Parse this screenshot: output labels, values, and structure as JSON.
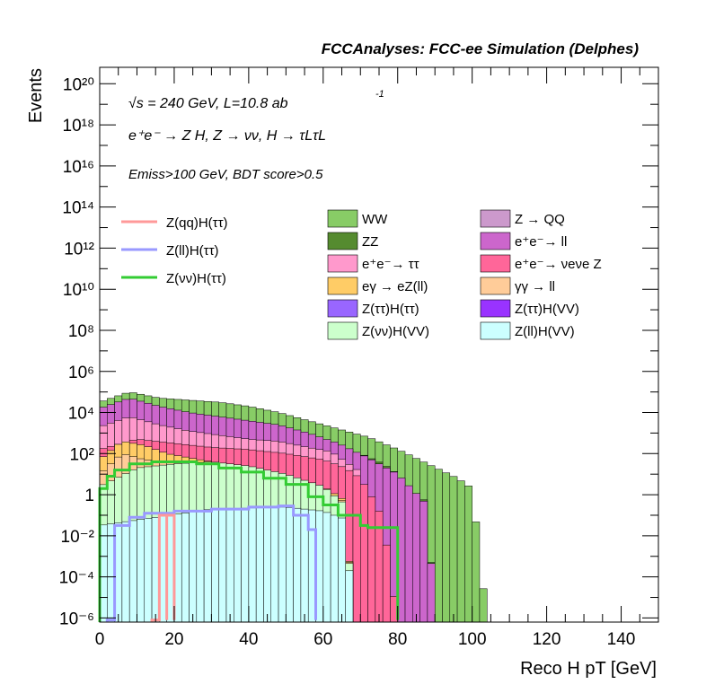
{
  "header": "FCCAnalyses: FCC-ee Simulation (Delphes)",
  "annotations": {
    "energy": "√s = 240 GeV, L=10.8 ab",
    "energy_exp": "-1",
    "process": "e⁺e⁻ → Z H, Z → νν, H → τLτL",
    "cut": "Emiss>100 GeV, BDT score>0.5"
  },
  "chart_data": {
    "type": "area",
    "xlabel": "Reco H pT [GeV]",
    "ylabel": "Events",
    "xlim": [
      0,
      150
    ],
    "ylim_log10": [
      -6.2,
      20.8
    ],
    "yscale": "log",
    "x_ticks": [
      "0",
      "20",
      "40",
      "60",
      "80",
      "100",
      "120",
      "140"
    ],
    "y_ticks": [
      "10⁻⁶",
      "10⁻⁴",
      "10⁻²",
      "1",
      "10²",
      "10⁴",
      "10⁶",
      "10⁸",
      "10¹⁰",
      "10¹²",
      "10¹⁴",
      "10¹⁶",
      "10¹⁸",
      "10²⁰"
    ],
    "legend_signals": [
      {
        "label": "Z(qq)H(ττ)",
        "color": "#ff9999"
      },
      {
        "label": "Z(ll)H(ττ)",
        "color": "#9999ff"
      },
      {
        "label": "Z(νν)H(ττ)",
        "color": "#33cc33"
      }
    ],
    "legend_backgrounds": [
      {
        "label": "WW",
        "color": "#88cc66"
      },
      {
        "label": "Z → QQ",
        "color": "#cc99cc"
      },
      {
        "label": "ZZ",
        "color": "#558b2f"
      },
      {
        "label": "e⁺e⁻→ ll",
        "color": "#cc66cc"
      },
      {
        "label": "e⁺e⁻→ ττ",
        "color": "#ff99cc"
      },
      {
        "label": "e⁺e⁻→ νeνe Z",
        "color": "#ff6699"
      },
      {
        "label": "eγ → eZ(ll)",
        "color": "#ffcc66"
      },
      {
        "label": "γγ → ll",
        "color": "#ffcc99"
      },
      {
        "label": "Z(ττ)H(ττ)",
        "color": "#9966ff"
      },
      {
        "label": "Z(ττ)H(VV)",
        "color": "#9933ff"
      },
      {
        "label": "Z(νν)H(VV)",
        "color": "#ccffcc"
      },
      {
        "label": "Z(ll)H(VV)",
        "color": "#ccffff"
      }
    ],
    "stack_bin_width": 2,
    "stack_totals_log10": [
      {
        "name": "Z(ll)H(VV)",
        "color": "#ccffff",
        "points": [
          [
            0,
            -1.5
          ],
          [
            30,
            -0.7
          ],
          [
            50,
            -0.6
          ],
          [
            60,
            -0.8
          ],
          [
            66,
            -1.2
          ],
          [
            68,
            -6.2
          ]
        ]
      },
      {
        "name": "Z(νν)H(VV)",
        "color": "#ccffcc",
        "points": [
          [
            0,
            0.4
          ],
          [
            10,
            1.3
          ],
          [
            20,
            1.5
          ],
          [
            30,
            1.6
          ],
          [
            40,
            1.4
          ],
          [
            50,
            1.0
          ],
          [
            60,
            0.4
          ],
          [
            66,
            -0.5
          ],
          [
            68,
            -6.2
          ]
        ]
      },
      {
        "name": "γγ → ll",
        "color": "#ffcc99",
        "points": [
          [
            0,
            1.0
          ],
          [
            6,
            2.0
          ],
          [
            12,
            1.7
          ],
          [
            18,
            1.6
          ],
          [
            24,
            1.5
          ],
          [
            30,
            1.4
          ],
          [
            40,
            1.2
          ],
          [
            50,
            0.8
          ],
          [
            60,
            0.3
          ],
          [
            66,
            -0.4
          ],
          [
            68,
            -6.2
          ]
        ]
      },
      {
        "name": "eγ → eZ(ll)",
        "color": "#ffcc66",
        "points": [
          [
            0,
            1.7
          ],
          [
            6,
            2.6
          ],
          [
            12,
            2.4
          ],
          [
            18,
            2.0
          ],
          [
            24,
            1.8
          ],
          [
            30,
            1.6
          ],
          [
            40,
            1.3
          ],
          [
            50,
            0.9
          ],
          [
            60,
            0.4
          ],
          [
            66,
            -0.3
          ],
          [
            68,
            -6.2
          ]
        ]
      },
      {
        "name": "e⁺e⁻→ νeνe Z",
        "color": "#ff6699",
        "points": [
          [
            0,
            2.2
          ],
          [
            10,
            2.7
          ],
          [
            20,
            2.5
          ],
          [
            30,
            2.3
          ],
          [
            40,
            2.2
          ],
          [
            50,
            2.0
          ],
          [
            60,
            1.7
          ],
          [
            66,
            1.3
          ],
          [
            70,
            0.8
          ],
          [
            74,
            -0.4
          ],
          [
            76,
            -1.2
          ],
          [
            80,
            -6.2
          ]
        ]
      },
      {
        "name": "e⁺e⁻→ ττ",
        "color": "#ff99cc",
        "points": [
          [
            0,
            3.3
          ],
          [
            8,
            3.8
          ],
          [
            16,
            3.4
          ],
          [
            24,
            3.1
          ],
          [
            32,
            2.9
          ],
          [
            40,
            2.7
          ],
          [
            48,
            2.6
          ],
          [
            56,
            2.3
          ],
          [
            62,
            2.1
          ],
          [
            66,
            1.6
          ],
          [
            70,
            1.1
          ],
          [
            72,
            -6.2
          ]
        ]
      },
      {
        "name": "e⁺e⁻→ ll",
        "color": "#cc66cc",
        "points": [
          [
            0,
            4.2
          ],
          [
            8,
            4.7
          ],
          [
            16,
            4.3
          ],
          [
            24,
            4.0
          ],
          [
            32,
            3.8
          ],
          [
            40,
            3.6
          ],
          [
            48,
            3.4
          ],
          [
            56,
            3.0
          ],
          [
            64,
            2.5
          ],
          [
            72,
            1.8
          ],
          [
            80,
            1.0
          ],
          [
            88,
            -0.5
          ],
          [
            90,
            -6.2
          ]
        ]
      },
      {
        "name": "ZZ",
        "color": "#558b2f",
        "points": [
          [
            0,
            2.7
          ],
          [
            10,
            3.0
          ],
          [
            20,
            3.0
          ],
          [
            30,
            2.9
          ],
          [
            40,
            2.8
          ],
          [
            50,
            2.6
          ],
          [
            60,
            2.4
          ],
          [
            70,
            2.0
          ],
          [
            76,
            1.5
          ],
          [
            80,
            1.0
          ],
          [
            84,
            0.2
          ],
          [
            88,
            -0.4
          ],
          [
            90,
            -6.2
          ]
        ]
      },
      {
        "name": "WW",
        "color": "#88cc66",
        "points": [
          [
            0,
            4.5
          ],
          [
            8,
            5.0
          ],
          [
            16,
            4.7
          ],
          [
            24,
            4.6
          ],
          [
            32,
            4.5
          ],
          [
            40,
            4.3
          ],
          [
            48,
            4.0
          ],
          [
            56,
            3.6
          ],
          [
            64,
            3.2
          ],
          [
            72,
            2.8
          ],
          [
            80,
            2.2
          ],
          [
            88,
            1.5
          ],
          [
            96,
            0.8
          ],
          [
            100,
            0.3
          ],
          [
            104,
            -6.2
          ]
        ]
      }
    ],
    "signal_lines_log10": [
      {
        "name": "Z(νν)H(ττ)",
        "color": "#33cc33",
        "points": [
          [
            0,
            0.3
          ],
          [
            2,
            0.9
          ],
          [
            4,
            1.2
          ],
          [
            8,
            1.5
          ],
          [
            14,
            1.6
          ],
          [
            20,
            1.6
          ],
          [
            26,
            1.5
          ],
          [
            32,
            1.3
          ],
          [
            38,
            1.1
          ],
          [
            44,
            0.8
          ],
          [
            50,
            0.5
          ],
          [
            56,
            -0.1
          ],
          [
            60,
            -0.5
          ],
          [
            64,
            -1.0
          ],
          [
            70,
            -1.5
          ],
          [
            72,
            -1.6
          ],
          [
            80,
            -6.1
          ]
        ]
      },
      {
        "name": "Z(ll)H(ττ)",
        "color": "#9999ff",
        "points": [
          [
            2,
            -6.1
          ],
          [
            4,
            -1.5
          ],
          [
            8,
            -1.1
          ],
          [
            12,
            -0.9
          ],
          [
            20,
            -0.8
          ],
          [
            30,
            -0.7
          ],
          [
            40,
            -0.6
          ],
          [
            48,
            -0.55
          ],
          [
            52,
            -1.0
          ],
          [
            56,
            -1.7
          ],
          [
            58,
            -6.1
          ]
        ]
      },
      {
        "name": "Z(qq)H(ττ)",
        "color": "#ff9999",
        "points": [
          [
            14,
            -6.1
          ],
          [
            16,
            -1.0
          ],
          [
            18,
            -6.1
          ],
          [
            18,
            -1.0
          ],
          [
            20,
            -6.1
          ]
        ]
      }
    ]
  }
}
